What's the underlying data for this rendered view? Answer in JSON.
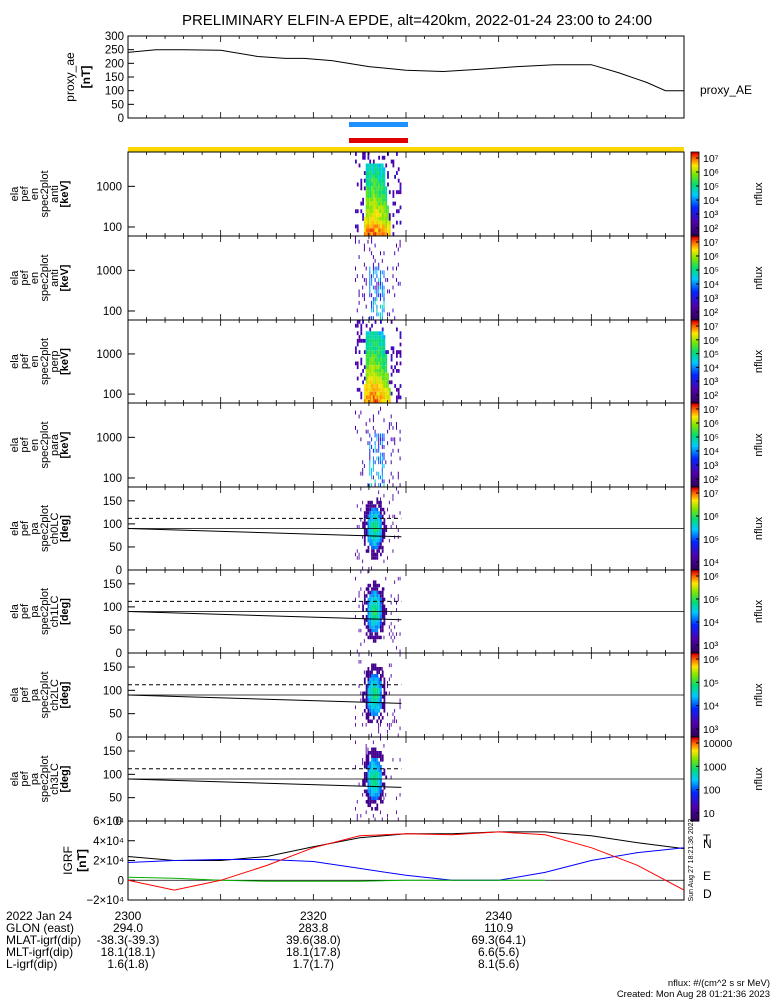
{
  "title": "PRELIMINARY ELFIN-A EPDE, alt=420km, 2022-01-24 23:00 to 24:00",
  "ae_panel": {
    "ylabel": "proxy_ae",
    "units": "[nT]",
    "legend": "proxy_AE",
    "ticks": [
      "300",
      "250",
      "200",
      "150",
      "100",
      "50",
      "0"
    ]
  },
  "spec_panels": [
    {
      "ylabel": [
        "ela",
        "pef",
        "en",
        "spec2plot",
        "anti"
      ],
      "units": "[keV]",
      "ticks": [
        "1000",
        "100"
      ],
      "cbar_label": "nflux"
    },
    {
      "ylabel": [
        "ela",
        "pef",
        "en",
        "spec2plot",
        "anti"
      ],
      "units": "[keV]",
      "ticks": [
        "1000",
        "100"
      ],
      "cbar_label": "nflux"
    },
    {
      "ylabel": [
        "ela",
        "pef",
        "en",
        "spec2plot",
        "perp"
      ],
      "units": "[keV]",
      "ticks": [
        "1000",
        "100"
      ],
      "cbar_label": "nflux"
    },
    {
      "ylabel": [
        "ela",
        "pef",
        "en",
        "spec2plot",
        "para"
      ],
      "units": "[keV]",
      "ticks": [
        "1000",
        "100"
      ],
      "cbar_label": "nflux"
    }
  ],
  "pa_panels": [
    {
      "ylabel": [
        "ela",
        "pef",
        "pa",
        "spec2plot",
        "ch0LC"
      ],
      "units": "[deg]",
      "ticks": [
        "150",
        "100",
        "50",
        "0"
      ],
      "cbar_label": "nflux"
    },
    {
      "ylabel": [
        "ela",
        "pef",
        "pa",
        "spec2plot",
        "ch1LC"
      ],
      "units": "[deg]",
      "ticks": [
        "150",
        "100",
        "50",
        "0"
      ],
      "cbar_label": "nflux"
    },
    {
      "ylabel": [
        "ela",
        "pef",
        "pa",
        "spec2plot",
        "ch2LC"
      ],
      "units": "[deg]",
      "ticks": [
        "150",
        "100",
        "50",
        "0"
      ],
      "cbar_label": "nflux"
    },
    {
      "ylabel": [
        "ela",
        "pef",
        "pa",
        "spec2plot",
        "ch3LC"
      ],
      "units": "[deg]",
      "ticks": [
        "150",
        "100",
        "50",
        "0"
      ],
      "cbar_label": "nflux"
    }
  ],
  "cbar_ticks": [
    [
      "10⁷",
      "10⁶",
      "10⁵",
      "10⁴",
      "10³",
      "10²"
    ],
    [
      "10⁷",
      "10⁶",
      "10⁵",
      "10⁴",
      "10³",
      "10²"
    ],
    [
      "10⁷",
      "10⁶",
      "10⁵",
      "10⁴",
      "10³",
      "10²"
    ],
    [
      "10⁷",
      "10⁶",
      "10⁵",
      "10⁴",
      "10³",
      "10²"
    ],
    [
      "10⁷",
      "10⁶",
      "10⁵",
      "10⁴"
    ],
    [
      "10⁶",
      "10⁵",
      "10⁴",
      "10³"
    ],
    [
      "10⁶",
      "10⁵",
      "10⁴",
      "10³"
    ],
    [
      "10000",
      "1000",
      "100",
      "10"
    ]
  ],
  "igrf_panel": {
    "ylabel": "IGRF",
    "units": "[nT]",
    "ticks": [
      "6×10⁴",
      "4×10⁴",
      "2×10⁴",
      "0",
      "−2×10⁴"
    ],
    "legend": [
      "T",
      "N",
      "E",
      "D"
    ]
  },
  "footer": {
    "rows": [
      {
        "label": "2022 Jan 24",
        "values": [
          "2300",
          "2320",
          "2340"
        ]
      },
      {
        "label": "GLON (east)",
        "values": [
          "294.0",
          "283.8",
          "110.9"
        ]
      },
      {
        "label": "MLAT-igrf(dip)",
        "values": [
          "-38.3(-39.3)",
          "39.6(38.0)",
          "69.3(64.1)"
        ]
      },
      {
        "label": "MLT-igrf(dip)",
        "values": [
          "18.1(18.1)",
          "18.1(17.8)",
          "6.6(5.6)"
        ]
      },
      {
        "label": "L-igrf(dip)",
        "values": [
          "1.6(1.8)",
          "1.7(1.7)",
          "8.1(5.6)"
        ]
      }
    ],
    "units_note": "nflux: #/(cm^2 s sr MeV)",
    "created": "Created: Mon Aug 28 01:21:36 2023",
    "side_stamp": "Sun Aug 27 18:21:36 2023"
  },
  "chart_data": [
    {
      "type": "line",
      "title": "PRELIMINARY ELFIN-A EPDE, alt=420km, 2022-01-24 23:00 to 24:00",
      "ylabel": "proxy_ae [nT]",
      "ylim": [
        0,
        300
      ],
      "x_minutes": [
        0,
        3,
        6,
        10,
        14,
        17,
        19,
        22,
        26,
        30,
        34,
        38,
        42,
        46,
        50,
        53,
        56,
        58,
        60
      ],
      "series": [
        {
          "name": "proxy_AE",
          "color": "#000000",
          "values": [
            240,
            250,
            250,
            248,
            225,
            218,
            218,
            210,
            188,
            175,
            170,
            178,
            188,
            195,
            195,
            165,
            130,
            100,
            100
          ]
        }
      ]
    },
    {
      "type": "heatmap",
      "ylabel": "ela pef en spec2plot [keV]",
      "ylim": [
        60,
        7000
      ],
      "yscale": "log",
      "colorbar": "nflux",
      "active_window_minutes": [
        24.5,
        29.5
      ]
    },
    {
      "type": "line",
      "ylabel": "IGRF [nT]",
      "ylim": [
        -20000,
        60000
      ],
      "x_minutes": [
        0,
        5,
        10,
        15,
        20,
        25,
        30,
        35,
        40,
        45,
        50,
        55,
        60
      ],
      "series": [
        {
          "name": "T",
          "color": "#000000",
          "values": [
            24000,
            20000,
            20000,
            24000,
            34000,
            43000,
            47000,
            47000,
            49000,
            49000,
            45000,
            38000,
            32000
          ]
        },
        {
          "name": "N",
          "color": "#0000ff",
          "values": [
            18000,
            20000,
            21000,
            21000,
            19000,
            12000,
            5000,
            0,
            0,
            8000,
            20000,
            28000,
            33000
          ]
        },
        {
          "name": "E",
          "color": "#00b000",
          "values": [
            3000,
            2000,
            0,
            -1000,
            -1000,
            -1000,
            0,
            0,
            0,
            0,
            0,
            0,
            0
          ]
        },
        {
          "name": "D",
          "color": "#ff0000",
          "values": [
            0,
            -10000,
            0,
            15000,
            33000,
            45000,
            47000,
            46000,
            49000,
            46000,
            33000,
            15000,
            -10000
          ]
        }
      ]
    }
  ]
}
